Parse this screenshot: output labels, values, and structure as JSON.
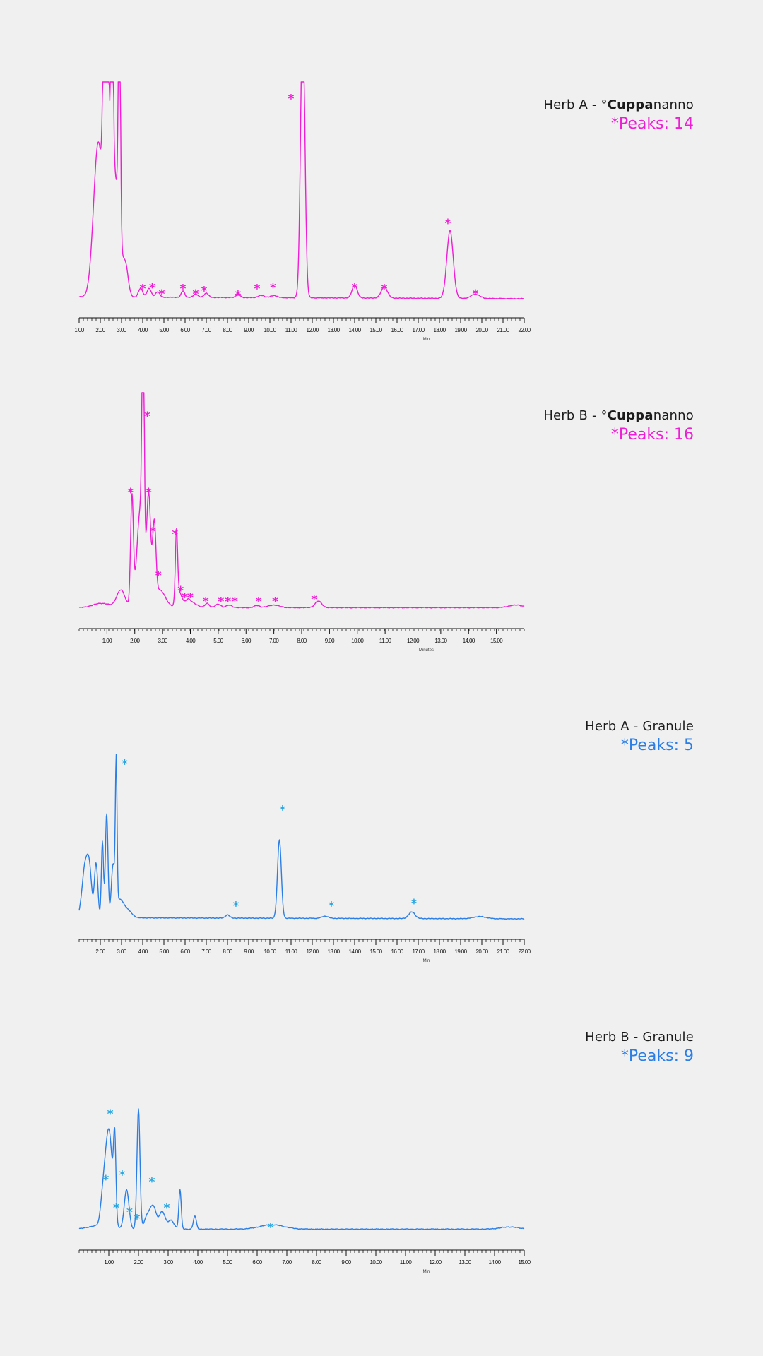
{
  "colors": {
    "pink": "#f01cd6",
    "blue": "#2a7ee6",
    "star_blue": "#29a6e0",
    "background": "#f0f0f0"
  },
  "chart_data": [
    {
      "type": "line",
      "title_prefix": "Herb A - °",
      "title_bold": "Cuppa",
      "title_suffix": "nanno",
      "peaks_label": "*Peaks: 14",
      "color_key": "pink",
      "star_color_key": "pink",
      "xlim": [
        1.0,
        22.0
      ],
      "ylim": [
        0,
        100
      ],
      "xlabel": "Min",
      "baseline": 1.5,
      "drift": -0.8,
      "ticks": [
        "1.00",
        "2.00",
        "3.00",
        "4.00",
        "5.00",
        "6.00",
        "7.00",
        "8.00",
        "9.00",
        "10.00",
        "11.00",
        "12.00",
        "13.00",
        "14.00",
        "15.00",
        "16.00",
        "17.00",
        "18.00",
        "19.00",
        "20.00",
        "21.00",
        "22.00"
      ],
      "tick_values": [
        1,
        2,
        3,
        4,
        5,
        6,
        7,
        8,
        9,
        10,
        11,
        12,
        13,
        14,
        15,
        16,
        17,
        18,
        19,
        20,
        21,
        22
      ],
      "peaks": [
        [
          1.9,
          70,
          0.22
        ],
        [
          2.2,
          115,
          0.07
        ],
        [
          2.35,
          90,
          0.06
        ],
        [
          2.55,
          125,
          0.05
        ],
        [
          2.9,
          115,
          0.05
        ],
        [
          2.62,
          60,
          0.25
        ],
        [
          3.2,
          12,
          0.12
        ],
        [
          3.9,
          4,
          0.1
        ],
        [
          4.3,
          4,
          0.1
        ],
        [
          4.7,
          2.5,
          0.1
        ],
        [
          5.9,
          3,
          0.08
        ],
        [
          6.5,
          1.6,
          0.1
        ],
        [
          7.0,
          2,
          0.1
        ],
        [
          8.5,
          1.5,
          0.1
        ],
        [
          9.6,
          1,
          0.15
        ],
        [
          10.2,
          1,
          0.15
        ],
        [
          11.55,
          130,
          0.1
        ],
        [
          14.0,
          6,
          0.12
        ],
        [
          15.4,
          5,
          0.15
        ],
        [
          18.5,
          31,
          0.15
        ],
        [
          19.7,
          2,
          0.2
        ]
      ],
      "stars_x": [
        4.0,
        4.45,
        4.9,
        5.9,
        6.5,
        6.9,
        8.5,
        9.4,
        10.15,
        11.0,
        14.0,
        15.4,
        18.4,
        19.7
      ],
      "stars_y": [
        6,
        6.5,
        3.5,
        6,
        3.5,
        5,
        3,
        6,
        6.5,
        93,
        6.5,
        6,
        36,
        3.5
      ]
    },
    {
      "type": "line",
      "title_prefix": "Herb B - °",
      "title_bold": "Cuppa",
      "title_suffix": "nanno",
      "peaks_label": "*Peaks: 16",
      "color_key": "pink",
      "star_color_key": "pink",
      "xlim": [
        0.0,
        16.0
      ],
      "ylim": [
        0,
        100
      ],
      "xlabel": "Minutes",
      "baseline": 1.5,
      "drift": 0,
      "ticks": [
        "1.00",
        "2.00",
        "3.00",
        "4.00",
        "5.00",
        "6.00",
        "7.00",
        "8.00",
        "9.00",
        "10.00",
        "11.00",
        "12.00",
        "13.00",
        "14.00",
        "15.00"
      ],
      "tick_values": [
        1,
        2,
        3,
        4,
        5,
        6,
        7,
        8,
        9,
        10,
        11,
        12,
        13,
        14,
        15
      ],
      "peaks": [
        [
          0.8,
          2,
          0.3
        ],
        [
          1.5,
          8,
          0.15
        ],
        [
          1.9,
          50,
          0.05
        ],
        [
          2.2,
          45,
          0.12
        ],
        [
          2.3,
          110,
          0.04
        ],
        [
          2.5,
          50,
          0.07
        ],
        [
          2.7,
          35,
          0.06
        ],
        [
          2.9,
          8,
          0.2
        ],
        [
          3.5,
          32,
          0.04
        ],
        [
          3.6,
          7,
          0.1
        ],
        [
          3.9,
          3,
          0.1
        ],
        [
          4.1,
          2,
          0.15
        ],
        [
          4.6,
          2,
          0.08
        ],
        [
          5.0,
          1.6,
          0.1
        ],
        [
          5.4,
          1.2,
          0.1
        ],
        [
          6.4,
          1.0,
          0.1
        ],
        [
          7.0,
          1.2,
          0.2
        ],
        [
          8.6,
          3,
          0.12
        ],
        [
          15.7,
          1.2,
          0.25
        ]
      ],
      "stars_x": [
        1.85,
        2.45,
        2.5,
        2.65,
        2.85,
        3.45,
        3.65,
        3.8,
        4.0,
        4.55,
        5.1,
        5.35,
        5.6,
        6.45,
        7.05,
        8.45
      ],
      "stars_y": [
        55,
        90,
        55,
        37,
        17,
        36,
        10,
        7,
        7,
        5,
        5,
        5,
        5,
        5,
        5,
        6
      ]
    },
    {
      "type": "line",
      "title": "Herb A - Granule",
      "peaks_label": "*Peaks: 5",
      "color_key": "blue",
      "star_color_key": "star_blue",
      "xlim": [
        1.0,
        22.0
      ],
      "ylim": [
        0,
        100
      ],
      "xlabel": "Min",
      "baseline": 1.8,
      "drift": -0.5,
      "ticks": [
        "2.00",
        "3.00",
        "4.00",
        "5.00",
        "6.00",
        "7.00",
        "8.00",
        "9.00",
        "10.00",
        "11.00",
        "12.00",
        "13.00",
        "14.00",
        "15.00",
        "16.00",
        "17.00",
        "18.00",
        "19.00",
        "20.00",
        "21.00",
        "22.00"
      ],
      "tick_values": [
        2,
        3,
        4,
        5,
        6,
        7,
        8,
        9,
        10,
        11,
        12,
        13,
        14,
        15,
        16,
        17,
        18,
        19,
        20,
        21,
        22
      ],
      "peaks": [
        [
          1.3,
          25,
          0.15
        ],
        [
          1.5,
          15,
          0.1
        ],
        [
          1.8,
          25,
          0.08
        ],
        [
          2.1,
          35,
          0.05
        ],
        [
          2.3,
          48,
          0.06
        ],
        [
          2.6,
          22,
          0.08
        ],
        [
          2.75,
          65,
          0.04
        ],
        [
          2.9,
          8,
          0.2
        ],
        [
          3.3,
          3,
          0.2
        ],
        [
          8.0,
          1.5,
          0.1
        ],
        [
          10.45,
          36,
          0.09
        ],
        [
          12.6,
          1,
          0.15
        ],
        [
          16.7,
          3,
          0.15
        ],
        [
          19.9,
          1,
          0.3
        ]
      ],
      "stars_x": [
        3.15,
        8.4,
        10.6,
        12.9,
        16.8
      ],
      "stars_y": [
        73,
        8,
        52,
        8,
        9
      ]
    },
    {
      "type": "line",
      "title": "Herb B - Granule",
      "peaks_label": "*Peaks: 9",
      "color_key": "blue",
      "star_color_key": "star_blue",
      "xlim": [
        0.0,
        15.0
      ],
      "ylim": [
        0,
        100
      ],
      "xlabel": "Min",
      "baseline": 1.5,
      "drift": 0,
      "ticks": [
        "1.00",
        "2.00",
        "3.00",
        "4.00",
        "5.00",
        "6.00",
        "7.00",
        "8.00",
        "9.00",
        "10.00",
        "11.00",
        "12.00",
        "13.00",
        "14.00",
        "15.00"
      ],
      "tick_values": [
        1,
        2,
        3,
        4,
        5,
        6,
        7,
        8,
        9,
        10,
        11,
        12,
        13,
        14,
        15
      ],
      "peaks": [
        [
          0.6,
          1.5,
          0.3
        ],
        [
          0.8,
          10,
          0.08
        ],
        [
          1.0,
          45,
          0.12
        ],
        [
          1.2,
          35,
          0.04
        ],
        [
          1.6,
          18,
          0.08
        ],
        [
          2.0,
          55,
          0.05
        ],
        [
          2.3,
          6,
          0.1
        ],
        [
          2.5,
          10,
          0.1
        ],
        [
          2.8,
          8,
          0.1
        ],
        [
          3.1,
          4,
          0.1
        ],
        [
          3.4,
          18,
          0.04
        ],
        [
          3.9,
          6,
          0.05
        ],
        [
          6.5,
          2,
          0.4
        ],
        [
          14.5,
          1,
          0.3
        ]
      ],
      "stars_x": [
        0.9,
        1.05,
        1.25,
        1.45,
        1.7,
        1.95,
        2.45,
        2.95,
        6.45
      ],
      "stars_y": [
        25,
        55,
        12,
        27,
        10,
        7,
        24,
        12,
        3
      ]
    }
  ]
}
